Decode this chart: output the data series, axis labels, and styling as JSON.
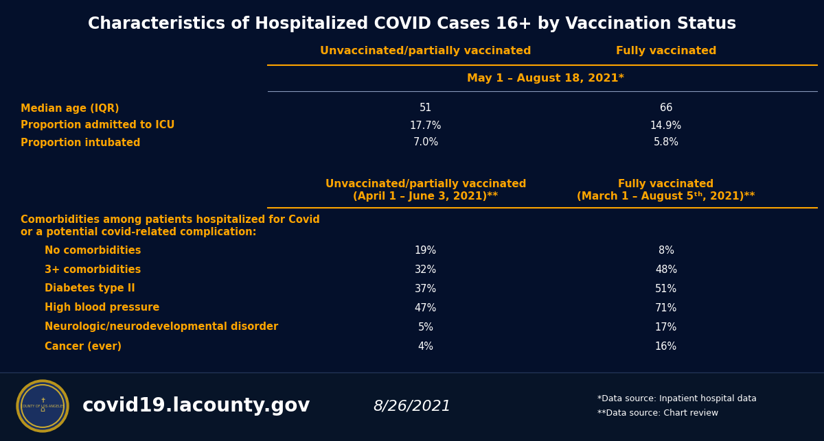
{
  "title": "Characteristics of Hospitalized COVID Cases 16+ by Vaccination Status",
  "bg_color": "#04102b",
  "bg_footer_color": "#071428",
  "white_color": "#ffffff",
  "gold_color": "#ffa500",
  "section1": {
    "col1_header": "Unvaccinated/partially vaccinated",
    "col2_header": "Fully vaccinated",
    "date_row": "May 1 – August 18, 2021*",
    "rows": [
      {
        "label": "Median age (IQR)",
        "col1": "51",
        "col2": "66"
      },
      {
        "label": "Proportion admitted to ICU",
        "col1": "17.7%",
        "col2": "14.9%"
      },
      {
        "label": "Proportion intubated",
        "col1": "7.0%",
        "col2": "5.8%"
      }
    ]
  },
  "section2": {
    "col1_header_line1": "Unvaccinated/partially vaccinated",
    "col1_header_line2": "(April 1 – June 3, 2021)**",
    "col2_header_line1": "Fully vaccinated",
    "col2_header_line2": "(March 1 – August 5th, 2021)**",
    "comorbidities_label_line1": "Comorbidities among patients hospitalized for Covid",
    "comorbidities_label_line2": "or a potential covid-related complication:",
    "rows": [
      {
        "label": "No comorbidities",
        "col1": "19%",
        "col2": "8%"
      },
      {
        "label": "3+ comorbidities",
        "col1": "32%",
        "col2": "48%"
      },
      {
        "label": "Diabetes type II",
        "col1": "37%",
        "col2": "51%"
      },
      {
        "label": "High blood pressure",
        "col1": "47%",
        "col2": "71%"
      },
      {
        "label": "Neurologic/neurodevelopmental disorder",
        "col1": "5%",
        "col2": "17%"
      },
      {
        "label": "Cancer (ever)",
        "col1": "4%",
        "col2": "16%"
      }
    ]
  },
  "footer": {
    "website": "covid19.lacounty.gov",
    "date": "8/26/2021",
    "note1": "*Data source: Inpatient hospital data",
    "note2": "**Data source: Chart review"
  }
}
